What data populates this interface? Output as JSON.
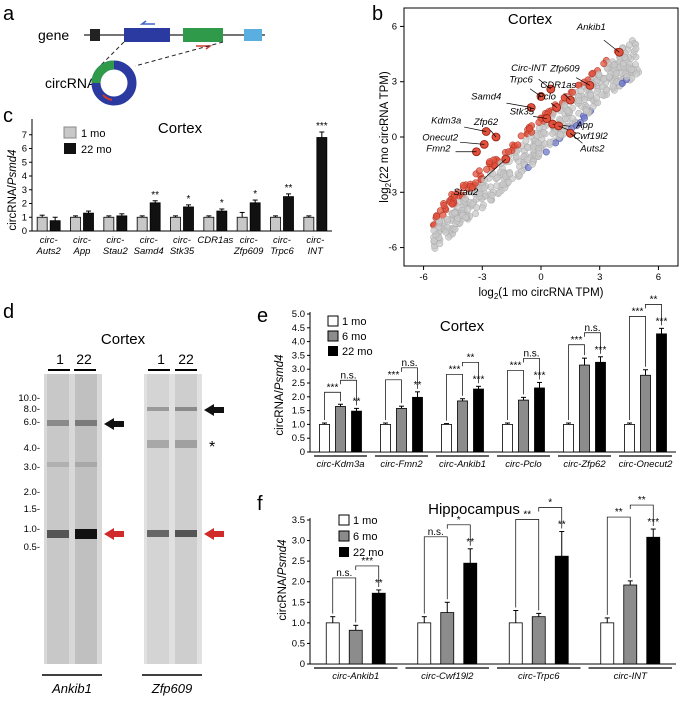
{
  "panels": {
    "a": {
      "label": "a",
      "gene_label": "gene",
      "circrna_label": "circRNA"
    },
    "b": {
      "label": "b",
      "title": "Cortex",
      "xlabel_main": "log",
      "xlabel_sub": "2",
      "xlabel_rest": "(1 mo circRNA TPM)",
      "ylabel_main": "log",
      "ylabel_sub": "2",
      "ylabel_rest": "(22 mo circRNA TPM)",
      "xticks": [
        "-6",
        "-3",
        "0",
        "3",
        "6"
      ],
      "yticks": [
        "6",
        "3",
        "0",
        "-3",
        "-6"
      ],
      "annotations": [
        "Ankib1",
        "Zfp609",
        "Circ-INT",
        "CDR1as",
        "Trpc6",
        "Pclo",
        "Samd4",
        "Stk35",
        "App",
        "Cwf19l2",
        "Kdm3a",
        "Zfp62",
        "Onecut2",
        "Fmn2",
        "Auts2",
        "Stau2"
      ]
    },
    "c": {
      "label": "c",
      "title": "Cortex",
      "ylabel": "circRNA/",
      "ylabel_italic": "Psmd4",
      "legend": [
        "1 mo",
        "22 mo"
      ],
      "yticks": [
        "0",
        "1",
        "2",
        "3",
        "4",
        "5",
        "6",
        "7"
      ]
    },
    "d": {
      "label": "d",
      "title": "Cortex",
      "lane_labels": [
        "1",
        "22"
      ],
      "size_markers": [
        "10.0-",
        "8.0-",
        "6.0-",
        "4.0-",
        "3.0-",
        "2.0-",
        "1.5-",
        "1.0-",
        "0.5-"
      ],
      "blots": [
        "Ankib1",
        "Zfp609"
      ],
      "asterisk": "*"
    },
    "e": {
      "label": "e",
      "title": "Cortex",
      "ylabel": "circRNA/",
      "ylabel_italic": "Psmd4",
      "legend": [
        "1 mo",
        "6 mo",
        "22 mo"
      ],
      "yticks": [
        "0",
        "0.5",
        "1.0",
        "1.5",
        "2.0",
        "2.5",
        "3.0",
        "3.5",
        "4.0",
        "4.5",
        "5.0"
      ]
    },
    "f": {
      "label": "f",
      "title": "Hippocampus",
      "ylabel": "circRNA/",
      "ylabel_italic": "Psmd4",
      "legend": [
        "1 mo",
        "6 mo",
        "22 mo"
      ],
      "yticks": [
        "0",
        "0.5",
        "1.0",
        "1.5",
        "2.0",
        "2.5",
        "3.0",
        "3.5"
      ]
    }
  },
  "chart_data": [
    {
      "panel": "b",
      "type": "scatter",
      "title": "Cortex",
      "xlabel": "log2(1 mo circRNA TPM)",
      "ylabel": "log2(22 mo circRNA TPM)",
      "xlim": [
        -7,
        7
      ],
      "ylim": [
        -7,
        7
      ],
      "colors": {
        "unchanged": "#c8c8c8",
        "up": "#e0503c",
        "down": "#6f78c8"
      },
      "highlighted": [
        {
          "name": "Ankib1",
          "x": 4.0,
          "y": 4.6
        },
        {
          "name": "Zfp609",
          "x": 2.5,
          "y": 2.8
        },
        {
          "name": "Circ-INT",
          "x": 0.5,
          "y": 2.6
        },
        {
          "name": "CDR1as",
          "x": 1.5,
          "y": 2.0
        },
        {
          "name": "Trpc6",
          "x": 0.0,
          "y": 2.2
        },
        {
          "name": "Pclo",
          "x": 0.8,
          "y": 1.6
        },
        {
          "name": "Samd4",
          "x": -0.5,
          "y": 1.6
        },
        {
          "name": "Stk35",
          "x": 0.3,
          "y": 1.0
        },
        {
          "name": "App",
          "x": 0.6,
          "y": 0.7
        },
        {
          "name": "Cwf19l2",
          "x": 0.9,
          "y": 0.6
        },
        {
          "name": "Kdm3a",
          "x": -2.8,
          "y": 0.3
        },
        {
          "name": "Zfp62",
          "x": -2.3,
          "y": 0.0
        },
        {
          "name": "Onecut2",
          "x": -2.9,
          "y": -0.4
        },
        {
          "name": "Fmn2",
          "x": -3.3,
          "y": -0.8
        },
        {
          "name": "Auts2",
          "x": 1.5,
          "y": 0.2
        },
        {
          "name": "Stau2",
          "x": -1.8,
          "y": -1.2
        }
      ]
    },
    {
      "panel": "c",
      "type": "bar",
      "title": "Cortex",
      "categories": [
        "circ-Auts2",
        "circ-App",
        "circ-Stau2",
        "circ-Samd4",
        "circ-Stk35",
        "CDR1as",
        "circ-Zfp609",
        "circ-Trpc6",
        "circ-INT"
      ],
      "series": [
        {
          "name": "1 mo",
          "color": "#c8c8c8",
          "values": [
            1.0,
            1.0,
            1.0,
            1.0,
            1.0,
            1.0,
            1.0,
            1.0,
            1.0
          ],
          "errors": [
            0.15,
            0.1,
            0.1,
            0.1,
            0.1,
            0.1,
            0.35,
            0.1,
            0.1
          ]
        },
        {
          "name": "22 mo",
          "color": "#111111",
          "values": [
            0.75,
            1.3,
            1.1,
            2.05,
            1.75,
            1.45,
            2.05,
            2.5,
            6.8
          ],
          "errors": [
            0.25,
            0.15,
            0.15,
            0.15,
            0.15,
            0.15,
            0.2,
            0.2,
            0.4
          ]
        }
      ],
      "significance": [
        "",
        "",
        "",
        "**",
        "*",
        "*",
        "*",
        "**",
        "***"
      ],
      "ylabel": "circRNA/Psmd4",
      "ylim": [
        0,
        8
      ]
    },
    {
      "panel": "e",
      "type": "bar",
      "title": "Cortex",
      "categories": [
        "circ-Kdm3a",
        "circ-Fmn2",
        "circ-Ankib1",
        "circ-Pclo",
        "circ-Zfp62",
        "circ-Onecut2"
      ],
      "series": [
        {
          "name": "1 mo",
          "color": "#ffffff",
          "values": [
            1.0,
            1.0,
            1.0,
            1.0,
            1.0,
            1.0
          ],
          "errors": [
            0.05,
            0.05,
            0.03,
            0.05,
            0.05,
            0.05
          ]
        },
        {
          "name": "6 mo",
          "color": "#8c8c8c",
          "values": [
            1.65,
            1.58,
            1.85,
            1.88,
            3.15,
            2.78
          ],
          "errors": [
            0.08,
            0.08,
            0.08,
            0.1,
            0.25,
            0.2
          ]
        },
        {
          "name": "22 mo",
          "color": "#000000",
          "values": [
            1.48,
            1.98,
            2.28,
            2.32,
            3.25,
            4.28
          ],
          "errors": [
            0.1,
            0.2,
            0.1,
            0.2,
            0.2,
            0.2
          ]
        }
      ],
      "brackets": [
        [
          "***",
          "n.s.",
          "**"
        ],
        [
          "***",
          "n.s.",
          "**"
        ],
        [
          "***",
          "**",
          "***"
        ],
        [
          "***",
          "n.s.",
          "***"
        ],
        [
          "***",
          "n.s.",
          "***"
        ],
        [
          "***",
          "**",
          "***"
        ]
      ],
      "ylabel": "circRNA/Psmd4",
      "ylim": [
        0,
        5.0
      ]
    },
    {
      "panel": "f",
      "type": "bar",
      "title": "Hippocampus",
      "categories": [
        "circ-Ankib1",
        "circ-Cwf19l2",
        "circ-Trpc6",
        "circ-INT"
      ],
      "series": [
        {
          "name": "1 mo",
          "color": "#ffffff",
          "values": [
            1.0,
            1.0,
            1.0,
            1.0
          ],
          "errors": [
            0.15,
            0.15,
            0.3,
            0.12
          ]
        },
        {
          "name": "6 mo",
          "color": "#8c8c8c",
          "values": [
            0.82,
            1.25,
            1.15,
            1.92
          ],
          "errors": [
            0.12,
            0.25,
            0.08,
            0.1
          ]
        },
        {
          "name": "22 mo",
          "color": "#000000",
          "values": [
            1.72,
            2.45,
            2.62,
            3.08
          ],
          "errors": [
            0.08,
            0.35,
            0.6,
            0.2
          ]
        }
      ],
      "brackets": [
        [
          "n.s.",
          "***",
          "**"
        ],
        [
          "n.s.",
          "*",
          "**"
        ],
        [
          "**",
          "*",
          "**"
        ],
        [
          "**",
          "**",
          "***"
        ]
      ],
      "ylabel": "circRNA/Psmd4",
      "ylim": [
        0,
        3.5
      ]
    }
  ]
}
